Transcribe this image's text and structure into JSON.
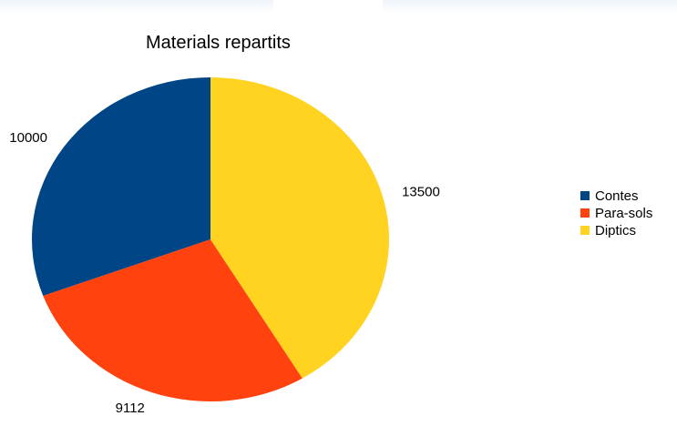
{
  "chart_data": {
    "type": "pie",
    "title": "Materials repartits",
    "categories": [
      "Contes",
      "Para-sols",
      "Diptics"
    ],
    "values": [
      10000,
      9112,
      13500
    ],
    "colors": [
      "#004586",
      "#ff420e",
      "#ffd320"
    ],
    "legend_position": "right"
  }
}
